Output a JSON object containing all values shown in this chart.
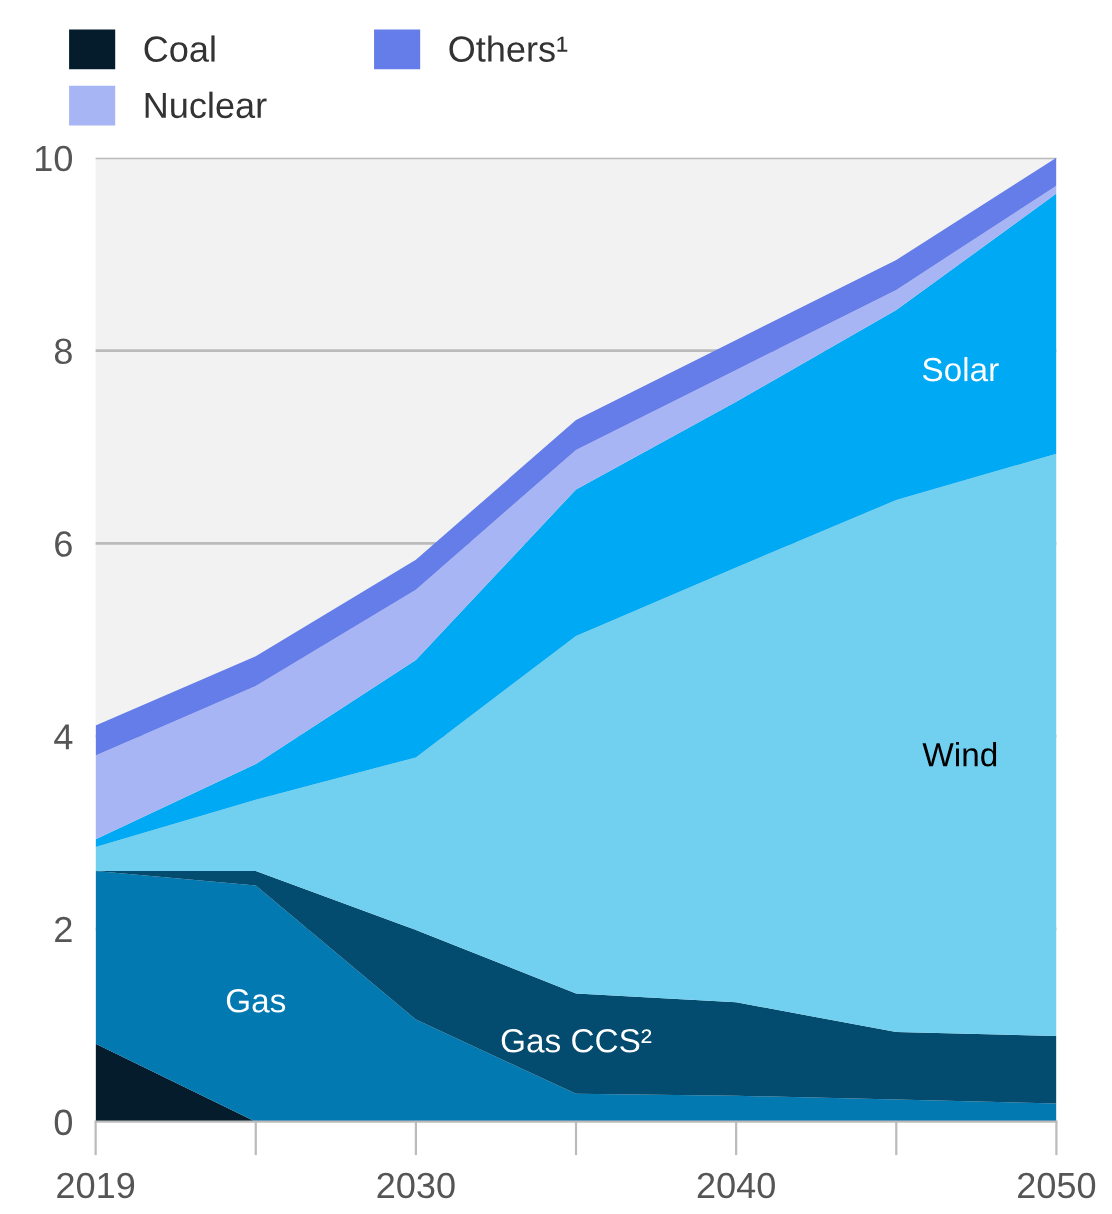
{
  "chart_data": {
    "type": "area",
    "stacked": true,
    "categories": [
      "2019",
      null,
      "2030",
      null,
      "2040",
      null,
      "2050"
    ],
    "series": [
      {
        "name": "Coal",
        "color": "#051c2c",
        "values": [
          0.81,
          0,
          0,
          0,
          0,
          0,
          0
        ]
      },
      {
        "name": "Gas",
        "color": "#027ab1",
        "values": [
          1.79,
          2.45,
          1.06,
          0.29,
          0.27,
          0.23,
          0.19
        ]
      },
      {
        "name": "Gas CCS²",
        "color": "#034b6f",
        "values": [
          0,
          0.15,
          0.93,
          1.04,
          0.97,
          0.7,
          0.7
        ]
      },
      {
        "name": "Wind",
        "color": "#71d0f0",
        "values": [
          0.25,
          0.74,
          1.79,
          3.71,
          4.51,
          5.52,
          6.04
        ]
      },
      {
        "name": "Solar",
        "color": "#00a9f4",
        "values": [
          0.08,
          0.37,
          1.01,
          1.52,
          1.72,
          1.97,
          2.7
        ]
      },
      {
        "name": "Nuclear",
        "color": "#a8b5f4",
        "values": [
          0.87,
          0.81,
          0.73,
          0.41,
          0.33,
          0.21,
          0.08
        ]
      },
      {
        "name": "Others¹",
        "color": "#647de9",
        "values": [
          0.31,
          0.31,
          0.31,
          0.31,
          0.31,
          0.31,
          0.29
        ]
      }
    ],
    "ylim": [
      0,
      10
    ],
    "yticks": [
      0,
      2,
      4,
      6,
      8,
      10
    ],
    "grid": "y",
    "legend": "top left"
  }
}
